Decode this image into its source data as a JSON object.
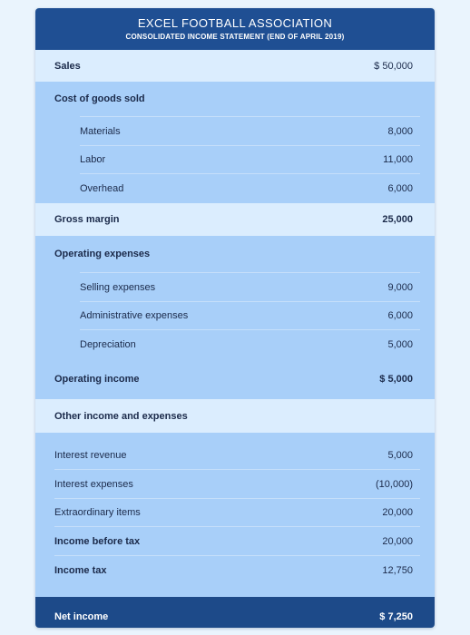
{
  "header": {
    "title": "EXCEL FOOTBALL ASSOCIATION",
    "subtitle": "CONSOLIDATED INCOME STATEMENT (END OF APRIL 2019)"
  },
  "sales": {
    "label": "Sales",
    "value": "$ 50,000"
  },
  "cogs": {
    "label": "Cost of goods sold",
    "items": [
      {
        "label": "Materials",
        "value": "8,000"
      },
      {
        "label": "Labor",
        "value": "11,000"
      },
      {
        "label": "Overhead",
        "value": "6,000"
      }
    ]
  },
  "gross_margin": {
    "label": "Gross margin",
    "value": "25,000"
  },
  "opex": {
    "label": "Operating expenses",
    "items": [
      {
        "label": "Selling expenses",
        "value": "9,000"
      },
      {
        "label": "Administrative expenses",
        "value": "6,000"
      },
      {
        "label": "Depreciation",
        "value": "5,000"
      }
    ]
  },
  "operating_income": {
    "label": "Operating income",
    "value": "$ 5,000"
  },
  "other": {
    "label": "Other income and expenses",
    "items": [
      {
        "label": "Interest revenue",
        "value": "5,000"
      },
      {
        "label": "Interest expenses",
        "value": "(10,000)"
      },
      {
        "label": "Extraordinary items",
        "value": "20,000"
      },
      {
        "label": "Income before tax",
        "value": "20,000"
      },
      {
        "label": "Income tax",
        "value": "12,750"
      }
    ]
  },
  "net_income": {
    "label": "Net income",
    "value": "$ 7,250"
  },
  "colors": {
    "header_bg": "#1f4f93",
    "light_band": "#dbedfe",
    "mid_band": "#a8cff9",
    "page_bg": "#eaf4fd"
  }
}
